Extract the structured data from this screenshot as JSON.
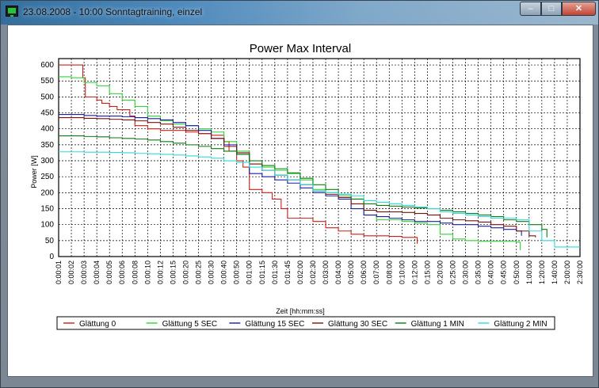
{
  "window": {
    "title": "23.08.2008 - 10:00  Sonntagtraining, einzel",
    "minimize_glyph": "–",
    "maximize_glyph": "□",
    "close_glyph": "✕",
    "icon": "monitor-icon"
  },
  "chart_data": {
    "type": "line",
    "title": "Power Max Interval",
    "xlabel": "Zeit [hh:mm:ss]",
    "ylabel": "Power [W]",
    "ylim": [
      0,
      620
    ],
    "y_ticks": [
      0,
      50,
      100,
      150,
      200,
      250,
      300,
      350,
      400,
      450,
      500,
      550,
      600
    ],
    "x_tick_labels": [
      "0:00:01",
      "0:00:02",
      "0:00:03",
      "0:00:04",
      "0:00:05",
      "0:00:06",
      "0:00:08",
      "0:00:10",
      "0:00:12",
      "0:00:15",
      "0:00:20",
      "0:00:25",
      "0:00:30",
      "0:00:40",
      "0:00:50",
      "0:01:00",
      "0:01:15",
      "0:01:30",
      "0:01:45",
      "0:02:00",
      "0:02:30",
      "0:03:00",
      "0:04:00",
      "0:05:00",
      "0:06:00",
      "0:07:00",
      "0:08:00",
      "0:10:00",
      "0:12:00",
      "0:15:00",
      "0:20:00",
      "0:25:00",
      "0:30:00",
      "0:35:00",
      "0:40:00",
      "0:45:00",
      "0:50:00",
      "1:00:00",
      "1:20:00",
      "1:40:00",
      "2:00:00",
      "2:30:00"
    ],
    "grid": true,
    "legend_position": "bottom",
    "series": [
      {
        "name": "Glättung   0",
        "color": "#c8201a",
        "x_index": [
          0,
          1,
          1.9,
          2.1,
          3,
          3.4,
          4,
          4.6,
          5,
          5.6,
          6,
          7,
          8,
          9,
          10,
          11,
          12,
          13,
          13.4,
          14,
          14.5,
          15,
          16,
          16.8,
          17.5,
          18,
          19,
          20,
          21,
          22,
          23,
          24,
          25,
          26,
          27,
          28,
          28.2
        ],
        "values": [
          600,
          600,
          560,
          500,
          490,
          480,
          470,
          460,
          460,
          440,
          410,
          400,
          395,
          395,
          390,
          385,
          380,
          360,
          330,
          300,
          280,
          210,
          200,
          180,
          150,
          120,
          120,
          110,
          90,
          80,
          70,
          65,
          65,
          63,
          60,
          60,
          40
        ]
      },
      {
        "name": "Glättung   5 SEC",
        "color": "#33d33a",
        "x_index": [
          0,
          1,
          2,
          3,
          4,
          5,
          6,
          7,
          8,
          9,
          10,
          11,
          12,
          13,
          14,
          15,
          16,
          17,
          18,
          19,
          20,
          21,
          22,
          23,
          24,
          25,
          26,
          27,
          28,
          29,
          30,
          31,
          32,
          33,
          34,
          35,
          36,
          36.3
        ],
        "values": [
          563,
          560,
          545,
          535,
          510,
          490,
          470,
          440,
          425,
          415,
          410,
          400,
          390,
          360,
          330,
          290,
          280,
          270,
          260,
          240,
          210,
          200,
          190,
          180,
          130,
          115,
          115,
          110,
          105,
          100,
          70,
          55,
          50,
          48,
          48,
          48,
          45,
          20
        ]
      },
      {
        "name": "Glättung 15 SEC",
        "color": "#1c1ca8",
        "x_index": [
          0,
          1,
          2,
          3,
          4,
          5,
          6,
          7,
          8,
          9,
          10,
          11,
          12,
          13,
          14,
          15,
          16,
          17,
          18,
          19,
          20,
          21,
          22,
          23,
          24,
          25,
          26,
          27,
          28,
          29,
          30,
          31,
          32,
          33,
          34,
          35,
          36,
          36.4
        ],
        "values": [
          445,
          445,
          442,
          440,
          440,
          438,
          435,
          432,
          428,
          420,
          410,
          395,
          370,
          350,
          320,
          260,
          250,
          240,
          230,
          215,
          200,
          190,
          180,
          150,
          130,
          125,
          120,
          115,
          110,
          110,
          105,
          100,
          100,
          95,
          90,
          85,
          80,
          65
        ]
      },
      {
        "name": "Glättung 30 SEC",
        "color": "#7a1010",
        "x_index": [
          0,
          1,
          2,
          3,
          4,
          5,
          6,
          7,
          8,
          9,
          10,
          11,
          12,
          13,
          14,
          15,
          16,
          17,
          18,
          19,
          20,
          21,
          22,
          23,
          24,
          25,
          26,
          27,
          28,
          29,
          30,
          31,
          32,
          33,
          34,
          35,
          36,
          37,
          37.5
        ],
        "values": [
          435,
          435,
          433,
          432,
          430,
          428,
          425,
          420,
          415,
          405,
          395,
          385,
          370,
          345,
          325,
          290,
          270,
          255,
          240,
          225,
          205,
          195,
          185,
          165,
          145,
          140,
          140,
          138,
          135,
          130,
          120,
          115,
          112,
          108,
          100,
          95,
          80,
          65,
          60
        ]
      },
      {
        "name": "Glättung   1 MIN",
        "color": "#0e7a12",
        "x_index": [
          0,
          1,
          2,
          3,
          4,
          5,
          6,
          7,
          8,
          9,
          10,
          11,
          12,
          13,
          14,
          15,
          16,
          17,
          18,
          19,
          20,
          21,
          22,
          23,
          24,
          25,
          26,
          27,
          28,
          29,
          30,
          31,
          32,
          33,
          34,
          35,
          36,
          37,
          38,
          38.4
        ],
        "values": [
          378,
          378,
          376,
          375,
          372,
          370,
          368,
          365,
          360,
          355,
          350,
          345,
          338,
          330,
          320,
          300,
          285,
          275,
          262,
          245,
          225,
          210,
          195,
          180,
          165,
          160,
          158,
          155,
          152,
          150,
          145,
          140,
          135,
          130,
          125,
          115,
          110,
          100,
          85,
          60
        ]
      },
      {
        "name": "Glättung   2 MIN",
        "color": "#33d8da",
        "x_index": [
          0,
          1,
          2,
          3,
          4,
          5,
          6,
          7,
          8,
          9,
          10,
          11,
          12,
          13,
          14,
          15,
          16,
          17,
          18,
          19,
          20,
          21,
          22,
          23,
          24,
          25,
          26,
          27,
          28,
          29,
          30,
          31,
          32,
          33,
          34,
          35,
          36,
          37,
          38,
          39,
          40,
          41
        ],
        "values": [
          328,
          328,
          327,
          327,
          326,
          325,
          323,
          322,
          320,
          318,
          315,
          312,
          308,
          300,
          295,
          280,
          270,
          255,
          240,
          225,
          205,
          200,
          195,
          190,
          175,
          170,
          165,
          160,
          155,
          150,
          140,
          135,
          130,
          125,
          120,
          120,
          115,
          80,
          50,
          30,
          30,
          30
        ]
      }
    ]
  }
}
